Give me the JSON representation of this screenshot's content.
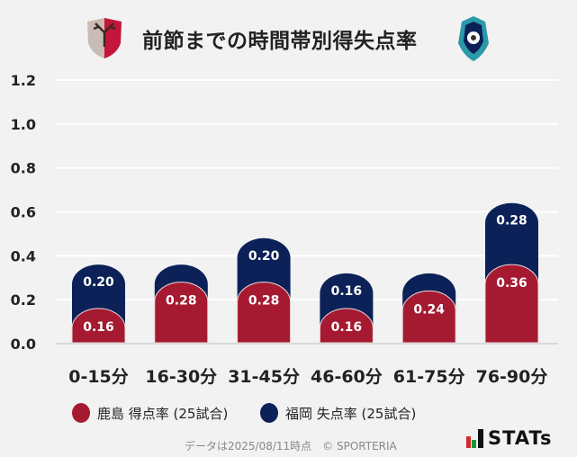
{
  "header": {
    "title": "前節までの時間帯別得失点率",
    "home_logo": "kashima-antlers-crest",
    "away_logo": "avispa-fukuoka-crest"
  },
  "chart_data": {
    "type": "bar",
    "stacked": true,
    "title": "前節までの時間帯別得失点率",
    "categories": [
      "0-15分",
      "16-30分",
      "31-45分",
      "46-60分",
      "61-75分",
      "76-90分"
    ],
    "series": [
      {
        "name": "鹿島 得点率 (25試合)",
        "color": "#a51a30",
        "values": [
          0.16,
          0.28,
          0.28,
          0.16,
          0.24,
          0.36
        ],
        "labels": [
          "0.16",
          "0.28",
          "0.28",
          "0.16",
          "0.24",
          "0.36"
        ]
      },
      {
        "name": "福岡 失点率 (25試合)",
        "color": "#0b2157",
        "values": [
          0.2,
          0.08,
          0.2,
          0.16,
          0.08,
          0.28
        ],
        "labels": [
          "0.20",
          "",
          "0.20",
          "0.16",
          "",
          "0.28"
        ]
      }
    ],
    "yticks": [
      "0.0",
      "0.2",
      "0.4",
      "0.6",
      "0.8",
      "1.0",
      "1.2"
    ],
    "ylim": [
      0,
      1.2
    ],
    "grid": true,
    "legend": "bottom"
  },
  "footer": {
    "credit": "データは2025/08/11時点　© SPORTERIA",
    "brand": "STATs"
  }
}
